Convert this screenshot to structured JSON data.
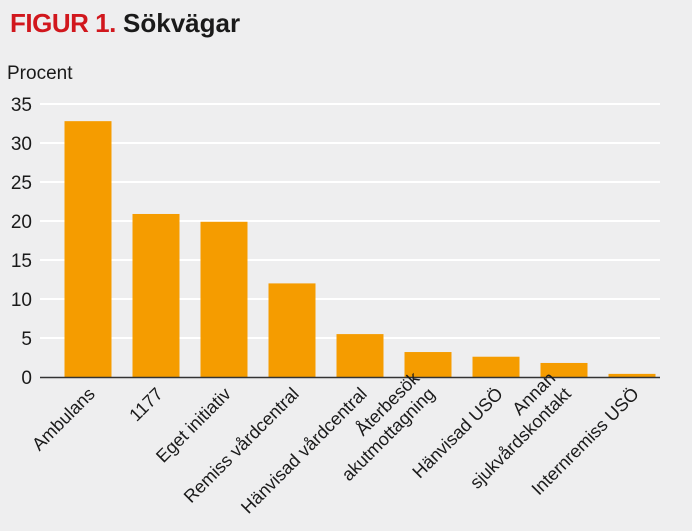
{
  "figure": {
    "label": "FIGUR 1.",
    "name": "Sökvägar"
  },
  "colors": {
    "bar": "#f59c00",
    "label_red": "#d1171d",
    "background": "#eeeeef",
    "grid": "#ffffff",
    "axis": "#333333",
    "text": "#1a1a1a"
  },
  "chart_data": {
    "type": "bar",
    "title": "Sökvägar",
    "ylabel": "Procent",
    "xlabel": "",
    "ylim": [
      0,
      35
    ],
    "yticks": [
      0,
      5,
      10,
      15,
      20,
      25,
      30,
      35
    ],
    "grid": true,
    "categories": [
      "Ambulans",
      "1177",
      "Eget initiativ",
      "Remiss vårdcentral",
      "Hänvisad vårdcentral",
      "Återbesök\nakutmottagning",
      "Hänvisad USÖ",
      "Annan\nsjukvårdskontakt",
      "Internremiss USÖ"
    ],
    "values": [
      32.8,
      20.9,
      19.9,
      12.0,
      5.5,
      3.2,
      2.6,
      1.8,
      0.4
    ]
  }
}
